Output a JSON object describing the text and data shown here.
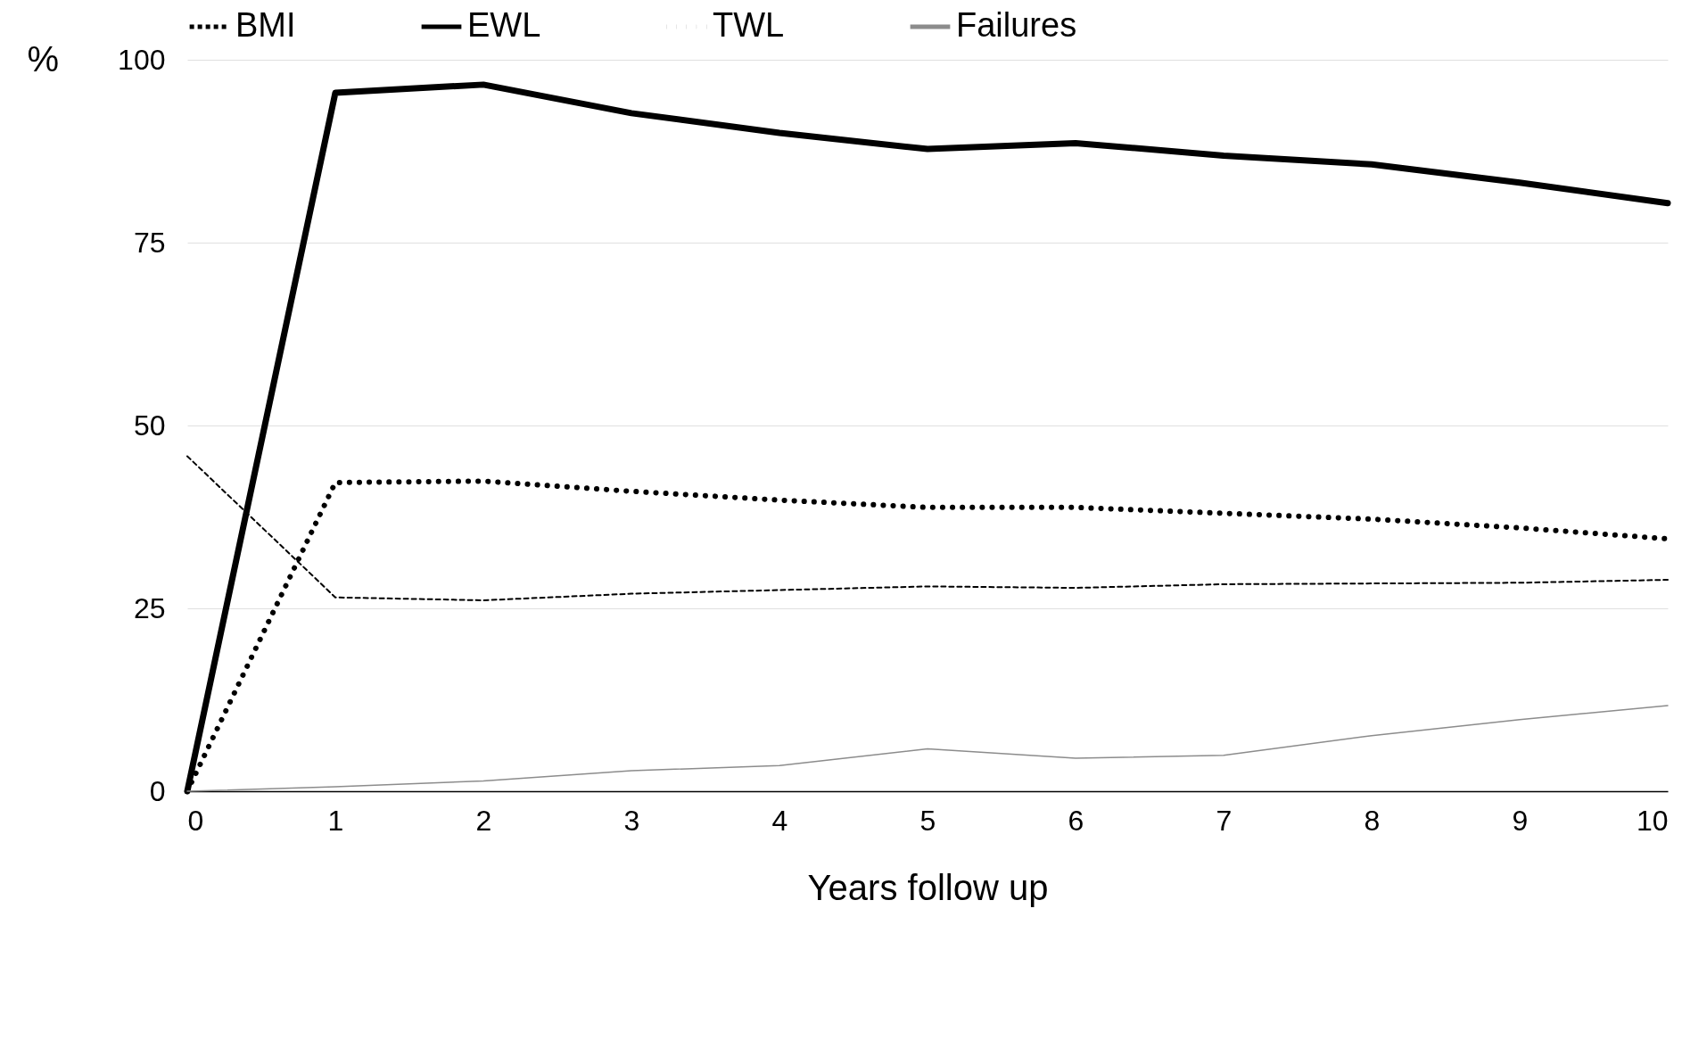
{
  "chart_data": {
    "type": "line",
    "xlabel": "Years follow up",
    "ylabel": "%",
    "x": [
      0,
      1,
      2,
      3,
      4,
      5,
      6,
      7,
      8,
      9,
      10
    ],
    "series": [
      {
        "name": "BMI",
        "color": "#000000",
        "line_style": "dashed",
        "values": [
          45.8,
          26.5,
          26.1,
          27,
          27.5,
          28,
          27.8,
          28.3,
          28.4,
          28.5,
          28.9
        ]
      },
      {
        "name": "EWL",
        "color": "#000000",
        "line_style": "solid",
        "values": [
          0,
          95.5,
          96.6,
          92.7,
          90,
          87.8,
          88.6,
          86.9,
          85.7,
          83.2,
          80.4
        ]
      },
      {
        "name": "TWL",
        "color": "#000000",
        "line_style": "dotted",
        "values": [
          0,
          42.2,
          42.4,
          41,
          39.8,
          38.8,
          38.8,
          38,
          37.2,
          36,
          34.5
        ]
      },
      {
        "name": "Failures",
        "color": "#8c8c8c",
        "line_style": "solid",
        "values": [
          0,
          0.6,
          1.4,
          2.8,
          3.5,
          5.8,
          4.5,
          4.9,
          7.6,
          9.8,
          11.7
        ]
      }
    ],
    "xlim": [
      0,
      10
    ],
    "xticks": [
      0,
      1,
      2,
      3,
      4,
      5,
      6,
      7,
      8,
      9,
      10
    ],
    "ylim": [
      0,
      100
    ],
    "yticks": [
      0,
      25,
      50,
      75,
      100
    ],
    "grid": "y",
    "legend": "top",
    "marker": "none"
  }
}
